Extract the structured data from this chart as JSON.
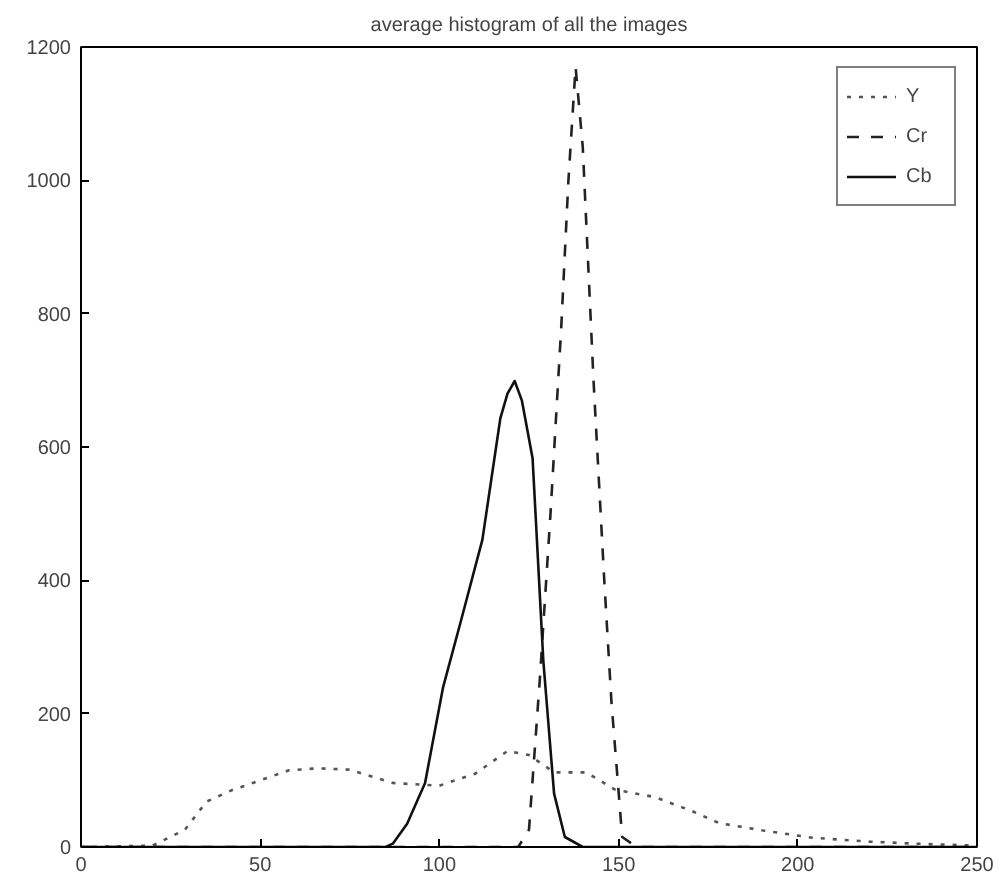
{
  "chart_data": {
    "type": "line",
    "title": "average histogram of all the images",
    "xlim": [
      0,
      250
    ],
    "ylim": [
      0,
      1200
    ],
    "xticks": [
      0,
      50,
      100,
      150,
      200,
      250
    ],
    "yticks": [
      0,
      200,
      400,
      600,
      800,
      1000,
      1200
    ],
    "grid": false,
    "legend": "top right",
    "marker": "none",
    "series": [
      {
        "name": "Y",
        "color": "#555555",
        "line_style": "dotted",
        "x": [
          0,
          20,
          29,
          35,
          42,
          50,
          58,
          66,
          75,
          87,
          100,
          110,
          119,
          125,
          132,
          141,
          149,
          160,
          170,
          178,
          190,
          204,
          220,
          233,
          250
        ],
        "values": [
          0,
          2,
          26,
          68,
          85,
          100,
          115,
          118,
          116,
          96,
          92,
          110,
          144,
          138,
          112,
          112,
          86,
          75,
          55,
          36,
          25,
          14,
          8,
          5,
          2
        ]
      },
      {
        "name": "Cr",
        "color": "#222222",
        "line_style": "dashed",
        "x": [
          0,
          122,
          125,
          128,
          131,
          134,
          136,
          138,
          140,
          143,
          146,
          148,
          151,
          155,
          250
        ],
        "values": [
          0,
          0,
          26,
          250,
          500,
          780,
          1000,
          1170,
          1050,
          700,
          400,
          218,
          15,
          0,
          0
        ]
      },
      {
        "name": "Cb",
        "color": "#111111",
        "line_style": "solid",
        "x": [
          0,
          85,
          87,
          91,
          96,
          101,
          106,
          112,
          117,
          119,
          121,
          123,
          126,
          129,
          132,
          135,
          140,
          250
        ],
        "values": [
          0,
          0,
          5,
          35,
          96,
          239,
          339,
          461,
          643,
          680,
          699,
          670,
          583,
          279,
          80,
          15,
          0,
          0
        ]
      }
    ]
  }
}
